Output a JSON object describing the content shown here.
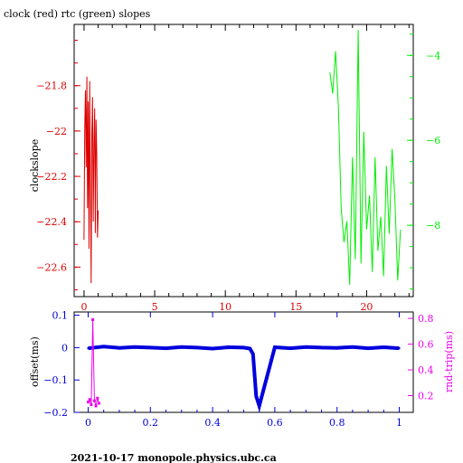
{
  "page": {
    "title": "clock (red) rtc (green) slopes",
    "footer": "2021-10-17  monopole.physics.ubc.ca"
  },
  "colors": {
    "red": "#dd0000",
    "green": "#00ee00",
    "blue": "#0000dd",
    "magenta": "#ee00ee",
    "black": "#000000"
  },
  "chart_data": [
    {
      "type": "line",
      "title": "clock (red) rtc (green) slopes",
      "ylabel": "clockslope",
      "xlim": [
        -0.7,
        23.3
      ],
      "ylim": [
        -22.73,
        -21.53
      ],
      "y2lim": [
        -9.68,
        -3.27
      ],
      "x_ticks": [
        0,
        5,
        10,
        15,
        20
      ],
      "y_ticks": [
        -21.8,
        -22,
        -22.2,
        -22.4,
        -22.6
      ],
      "y2_ticks": [
        -4,
        -6,
        -8
      ],
      "grid": false,
      "series": [
        {
          "name": "clock",
          "axis": "left",
          "color": "red",
          "x": [
            0.0,
            0.05,
            0.1,
            0.15,
            0.2,
            0.25,
            0.3,
            0.35,
            0.4,
            0.45,
            0.5,
            0.55,
            0.6,
            0.65,
            0.7,
            0.75,
            0.8,
            0.85,
            0.9,
            0.95,
            1.0
          ],
          "values": [
            -22.48,
            -21.99,
            -21.82,
            -22.16,
            -21.76,
            -22.34,
            -21.87,
            -22.52,
            -21.78,
            -22.24,
            -22.67,
            -22.02,
            -21.85,
            -22.4,
            -22.05,
            -21.9,
            -22.45,
            -21.95,
            -22.1,
            -22.47,
            -22.35
          ]
        },
        {
          "name": "rtc",
          "axis": "right",
          "color": "green",
          "x": [
            17.4,
            17.6,
            17.8,
            18.0,
            18.2,
            18.4,
            18.6,
            18.8,
            19.0,
            19.2,
            19.4,
            19.6,
            19.8,
            20.0,
            20.2,
            20.4,
            20.6,
            20.8,
            21.0,
            21.2,
            21.4,
            21.6,
            21.8,
            22.0,
            22.2,
            22.4
          ],
          "values": [
            -4.4,
            -4.9,
            -3.9,
            -5.2,
            -7.6,
            -8.4,
            -7.9,
            -9.4,
            -6.4,
            -8.8,
            -3.4,
            -8.9,
            -5.8,
            -8.1,
            -7.3,
            -9.1,
            -6.4,
            -8.6,
            -7.8,
            -9.2,
            -6.6,
            -8.2,
            -6.2,
            -7.4,
            -9.3,
            -8.1
          ]
        }
      ]
    },
    {
      "type": "scatter",
      "ylabel": "offset(ms)",
      "y2label": "rnd-trip(ms)",
      "xlim": [
        -0.045,
        1.045
      ],
      "ylim": [
        -0.2,
        0.11
      ],
      "y2lim": [
        0.07,
        0.85
      ],
      "x_ticks": [
        0,
        0.2,
        0.4,
        0.6,
        0.8,
        1
      ],
      "x_tick_labels": [
        "0",
        "0.2",
        "0.4",
        "0.6",
        "0.8",
        "1"
      ],
      "y_ticks": [
        0.1,
        0,
        -0.1,
        -0.2
      ],
      "y2_ticks": [
        0.8,
        0.6,
        0.4,
        0.2
      ],
      "y2_tick_labels": [
        "0.8",
        "0.6",
        "0.4",
        "0.2"
      ],
      "grid": false,
      "series": [
        {
          "name": "offset",
          "axis": "left",
          "color": "blue",
          "x": [
            0.0,
            0.05,
            0.1,
            0.15,
            0.2,
            0.25,
            0.3,
            0.35,
            0.4,
            0.45,
            0.5,
            0.52,
            0.53,
            0.54,
            0.55,
            0.6,
            0.65,
            0.7,
            0.75,
            0.8,
            0.85,
            0.9,
            0.95,
            1.0
          ],
          "values": [
            -0.002,
            0.003,
            -0.001,
            0.002,
            0.0,
            -0.002,
            0.002,
            0.0,
            -0.003,
            0.001,
            0.0,
            -0.003,
            -0.02,
            -0.15,
            -0.18,
            0.001,
            -0.002,
            0.002,
            0.0,
            -0.001,
            0.002,
            -0.002,
            0.001,
            -0.002
          ]
        },
        {
          "name": "rnd-trip",
          "axis": "right",
          "color": "magenta",
          "x": [
            0.0,
            0.005,
            0.01,
            0.015,
            0.02,
            0.025,
            0.03,
            0.035
          ],
          "values": [
            0.15,
            0.17,
            0.13,
            0.79,
            0.16,
            0.12,
            0.18,
            0.14
          ]
        }
      ]
    }
  ]
}
